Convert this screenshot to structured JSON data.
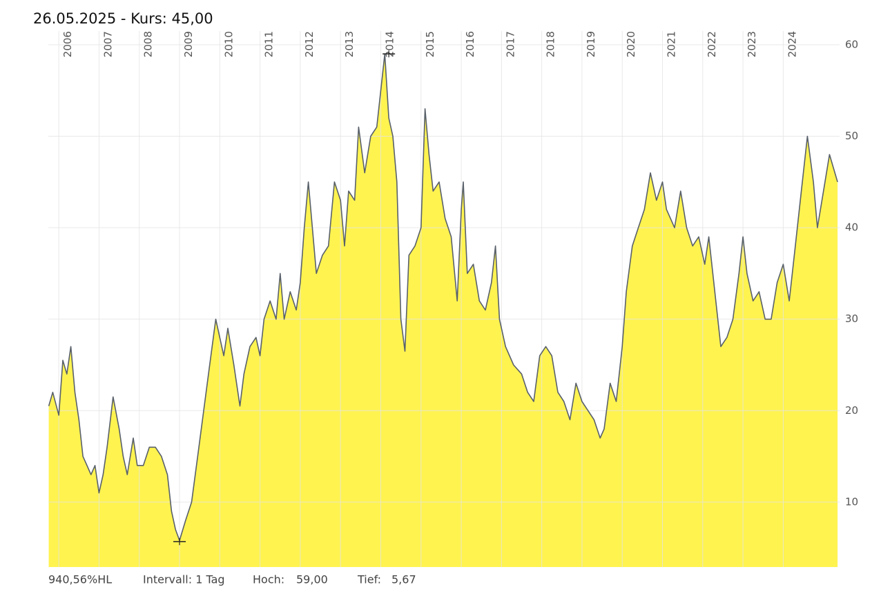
{
  "chart_data": {
    "type": "area",
    "title": "26.05.2025  -  Kurs: 45,00",
    "x": [
      2005.75,
      2005.85,
      2006.0,
      2006.1,
      2006.2,
      2006.3,
      2006.4,
      2006.5,
      2006.6,
      2006.7,
      2006.8,
      2006.9,
      2007.0,
      2007.1,
      2007.2,
      2007.35,
      2007.5,
      2007.6,
      2007.7,
      2007.85,
      2007.95,
      2008.1,
      2008.25,
      2008.4,
      2008.55,
      2008.7,
      2008.8,
      2008.9,
      2009.0,
      2009.15,
      2009.3,
      2009.45,
      2009.6,
      2009.75,
      2009.9,
      2010.0,
      2010.1,
      2010.2,
      2010.35,
      2010.5,
      2010.6,
      2010.75,
      2010.9,
      2011.0,
      2011.1,
      2011.25,
      2011.4,
      2011.5,
      2011.6,
      2011.75,
      2011.9,
      2012.0,
      2012.1,
      2012.2,
      2012.3,
      2012.4,
      2012.55,
      2012.7,
      2012.85,
      2013.0,
      2013.1,
      2013.2,
      2013.35,
      2013.45,
      2013.6,
      2013.75,
      2013.9,
      2014.0,
      2014.1,
      2014.2,
      2014.3,
      2014.4,
      2014.5,
      2014.6,
      2014.7,
      2014.85,
      2015.0,
      2015.1,
      2015.2,
      2015.3,
      2015.45,
      2015.6,
      2015.75,
      2015.9,
      2016.0,
      2016.05,
      2016.15,
      2016.3,
      2016.45,
      2016.6,
      2016.75,
      2016.85,
      2016.95,
      2017.1,
      2017.3,
      2017.5,
      2017.65,
      2017.8,
      2017.95,
      2018.1,
      2018.25,
      2018.4,
      2018.55,
      2018.7,
      2018.85,
      2019.0,
      2019.15,
      2019.3,
      2019.45,
      2019.55,
      2019.7,
      2019.85,
      2020.0,
      2020.1,
      2020.25,
      2020.4,
      2020.55,
      2020.7,
      2020.85,
      2021.0,
      2021.1,
      2021.3,
      2021.45,
      2021.6,
      2021.75,
      2021.9,
      2022.05,
      2022.15,
      2022.3,
      2022.45,
      2022.6,
      2022.75,
      2022.9,
      2023.0,
      2023.1,
      2023.25,
      2023.4,
      2023.55,
      2023.7,
      2023.85,
      2024.0,
      2024.15,
      2024.3,
      2024.45,
      2024.6,
      2024.75,
      2024.85,
      2025.0,
      2025.15,
      2025.35
    ],
    "values": [
      20.5,
      22,
      19.5,
      25.5,
      24,
      27,
      22,
      19,
      15,
      14,
      13,
      14,
      11,
      13,
      16,
      21.5,
      18,
      15,
      13,
      17,
      14,
      14,
      16,
      16,
      15,
      13,
      9,
      7,
      5.8,
      8,
      10,
      15,
      20,
      25,
      30,
      28,
      26,
      29,
      25,
      20.5,
      24,
      27,
      28,
      26,
      30,
      32,
      30,
      35,
      30,
      33,
      31,
      34,
      40,
      45,
      40,
      35,
      37,
      38,
      45,
      43,
      38,
      44,
      43,
      51,
      46,
      50,
      51,
      55,
      59,
      52,
      50,
      45,
      30,
      26.5,
      37,
      38,
      40,
      53,
      48,
      44,
      45,
      41,
      39,
      32,
      42,
      45,
      35,
      36,
      32,
      31,
      34,
      38,
      30,
      27,
      25,
      24,
      22,
      21,
      26,
      27,
      26,
      22,
      21,
      19,
      23,
      21,
      20,
      19,
      17,
      18,
      23,
      21,
      27,
      33,
      38,
      40,
      42,
      46,
      43,
      45,
      42,
      40,
      44,
      40,
      38,
      39,
      36,
      39,
      33,
      27,
      28,
      30,
      35,
      39,
      35,
      32,
      33,
      30,
      30,
      34,
      36,
      32,
      38,
      44,
      50,
      45,
      40,
      44,
      48,
      45
    ],
    "color": "#fff350",
    "line_color": "#58606a",
    "xlim": [
      2005.74,
      2025.4
    ],
    "xticks": [
      2006,
      2007,
      2008,
      2009,
      2010,
      2011,
      2012,
      2013,
      2014,
      2015,
      2016,
      2017,
      2018,
      2019,
      2020,
      2021,
      2022,
      2023,
      2024
    ],
    "ylim": [
      2.9,
      61.5
    ],
    "yticks": [
      10,
      20,
      30,
      40,
      50,
      60
    ],
    "grid": true,
    "footer": {
      "range": "940,56%HL",
      "interval": "Intervall: 1 Tag"
    },
    "stats": [
      {
        "label": "Hoch:",
        "value": 59,
        "value_label": "59,00",
        "x": 2014.2
      },
      {
        "label": "Tief:",
        "value": 5.67,
        "value_label": "5,67",
        "x": 2009.0
      }
    ]
  }
}
